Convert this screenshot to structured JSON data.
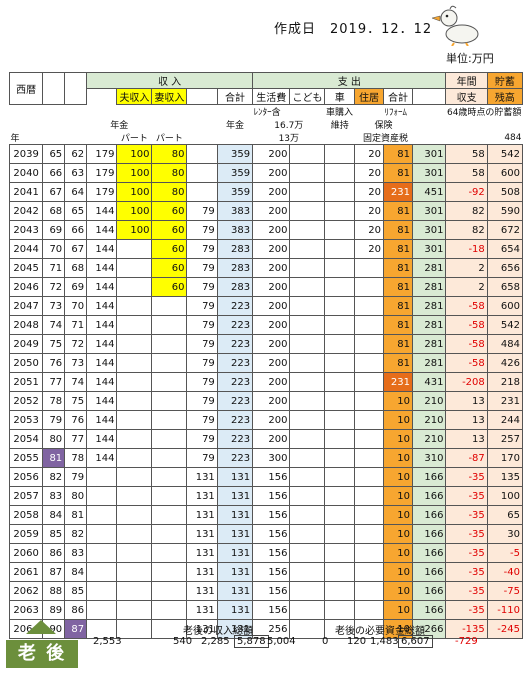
{
  "header": {
    "title": "作成日",
    "date": "2019．12．12",
    "unit": "単位:万円"
  },
  "table": {
    "h_seireki": "西暦",
    "h_income": "収 入",
    "h_expense": "支 出",
    "h_annual1": "年間",
    "h_annual2": "収支",
    "h_savings1": "貯蓄",
    "h_savings2": "残高",
    "h_husband": "夫収入",
    "h_wife": "妻収入",
    "h_total": "合計",
    "h_living": "生活費",
    "h_kids": "こども",
    "h_car": "車",
    "h_house": "住居",
    "h_total2": "合計",
    "n_loan": "ﾚﾝﾀｰ含",
    "n_car": "車購入",
    "n_reform": "ﾘﾌｫｰﾑ",
    "n_167": "16.7万",
    "n_ij": "維持",
    "n_hoken": "保険",
    "n_sav": "64歳時点の貯蓄額",
    "n_nen": "年",
    "n_nenkin": "年金",
    "n_part1": "パート",
    "n_part2": "パート",
    "n_nenkin2": "年金",
    "n_13": "13万",
    "n_kotei": "固定資産税",
    "n_484": "484"
  },
  "rows": [
    [
      "2039",
      "65",
      "62",
      "179",
      "100",
      "80",
      "",
      "359",
      "200",
      "",
      "",
      "20",
      "81",
      "301",
      "58",
      "542"
    ],
    [
      "2040",
      "66",
      "63",
      "179",
      "100",
      "80",
      "",
      "359",
      "200",
      "",
      "",
      "20",
      "81",
      "301",
      "58",
      "600"
    ],
    [
      "2041",
      "67",
      "64",
      "179",
      "100",
      "80",
      "",
      "359",
      "200",
      "",
      "",
      "20",
      "231",
      "451",
      "-92",
      "508"
    ],
    [
      "2042",
      "68",
      "65",
      "144",
      "100",
      "60",
      "79",
      "383",
      "200",
      "",
      "",
      "20",
      "81",
      "301",
      "82",
      "590"
    ],
    [
      "2043",
      "69",
      "66",
      "144",
      "100",
      "60",
      "79",
      "383",
      "200",
      "",
      "",
      "20",
      "81",
      "301",
      "82",
      "672"
    ],
    [
      "2044",
      "70",
      "67",
      "144",
      "",
      "60",
      "79",
      "283",
      "200",
      "",
      "",
      "20",
      "81",
      "301",
      "-18",
      "654"
    ],
    [
      "2045",
      "71",
      "68",
      "144",
      "",
      "60",
      "79",
      "283",
      "200",
      "",
      "",
      "",
      "81",
      "281",
      "2",
      "656"
    ],
    [
      "2046",
      "72",
      "69",
      "144",
      "",
      "60",
      "79",
      "283",
      "200",
      "",
      "",
      "",
      "81",
      "281",
      "2",
      "658"
    ],
    [
      "2047",
      "73",
      "70",
      "144",
      "",
      "",
      "79",
      "223",
      "200",
      "",
      "",
      "",
      "81",
      "281",
      "-58",
      "600"
    ],
    [
      "2048",
      "74",
      "71",
      "144",
      "",
      "",
      "79",
      "223",
      "200",
      "",
      "",
      "",
      "81",
      "281",
      "-58",
      "542"
    ],
    [
      "2049",
      "75",
      "72",
      "144",
      "",
      "",
      "79",
      "223",
      "200",
      "",
      "",
      "",
      "81",
      "281",
      "-58",
      "484"
    ],
    [
      "2050",
      "76",
      "73",
      "144",
      "",
      "",
      "79",
      "223",
      "200",
      "",
      "",
      "",
      "81",
      "281",
      "-58",
      "426"
    ],
    [
      "2051",
      "77",
      "74",
      "144",
      "",
      "",
      "79",
      "223",
      "200",
      "",
      "",
      "",
      "231",
      "431",
      "-208",
      "218"
    ],
    [
      "2052",
      "78",
      "75",
      "144",
      "",
      "",
      "79",
      "223",
      "200",
      "",
      "",
      "",
      "10",
      "210",
      "13",
      "231"
    ],
    [
      "2053",
      "79",
      "76",
      "144",
      "",
      "",
      "79",
      "223",
      "200",
      "",
      "",
      "",
      "10",
      "210",
      "13",
      "244"
    ],
    [
      "2054",
      "80",
      "77",
      "144",
      "",
      "",
      "79",
      "223",
      "200",
      "",
      "",
      "",
      "10",
      "210",
      "13",
      "257"
    ],
    [
      "2055",
      "81",
      "78",
      "144",
      "",
      "",
      "79",
      "223",
      "300",
      "",
      "",
      "",
      "10",
      "310",
      "-87",
      "170"
    ],
    [
      "2056",
      "82",
      "79",
      "",
      "",
      "",
      "131",
      "131",
      "156",
      "",
      "",
      "",
      "10",
      "166",
      "-35",
      "135"
    ],
    [
      "2057",
      "83",
      "80",
      "",
      "",
      "",
      "131",
      "131",
      "156",
      "",
      "",
      "",
      "10",
      "166",
      "-35",
      "100"
    ],
    [
      "2058",
      "84",
      "81",
      "",
      "",
      "",
      "131",
      "131",
      "156",
      "",
      "",
      "",
      "10",
      "166",
      "-35",
      "65"
    ],
    [
      "2059",
      "85",
      "82",
      "",
      "",
      "",
      "131",
      "131",
      "156",
      "",
      "",
      "",
      "10",
      "166",
      "-35",
      "30"
    ],
    [
      "2060",
      "86",
      "83",
      "",
      "",
      "",
      "131",
      "131",
      "156",
      "",
      "",
      "",
      "10",
      "166",
      "-35",
      "-5"
    ],
    [
      "2061",
      "87",
      "84",
      "",
      "",
      "",
      "131",
      "131",
      "156",
      "",
      "",
      "",
      "10",
      "166",
      "-35",
      "-40"
    ],
    [
      "2062",
      "88",
      "85",
      "",
      "",
      "",
      "131",
      "131",
      "156",
      "",
      "",
      "",
      "10",
      "166",
      "-35",
      "-75"
    ],
    [
      "2063",
      "89",
      "86",
      "",
      "",
      "",
      "131",
      "131",
      "156",
      "",
      "",
      "",
      "10",
      "166",
      "-35",
      "-110"
    ],
    [
      "2064",
      "90",
      "87",
      "",
      "",
      "",
      "131",
      "131",
      "256",
      "",
      "",
      "",
      "10",
      "266",
      "-135",
      "-245"
    ]
  ],
  "totals": {
    "lbl_income": "老後の収入総額",
    "lbl_expense": "老後の必要資金総額",
    "husband": "2,553",
    "wife": "540",
    "pension": "2,285",
    "income_total": "5,878",
    "living": "5,004",
    "kids": "0",
    "car": "120",
    "house": "1,483",
    "expense_total": "6,607",
    "balance": "-729"
  },
  "badge": "老 後",
  "colors": {
    "yellow": "#ffff00",
    "green": "#d9ead3",
    "blue": "#dcebf6",
    "orange": "#f7a630",
    "dark_orange": "#e66d1a",
    "pink": "#fde9d9",
    "purple": "#8064a2",
    "red": "#e00000"
  }
}
